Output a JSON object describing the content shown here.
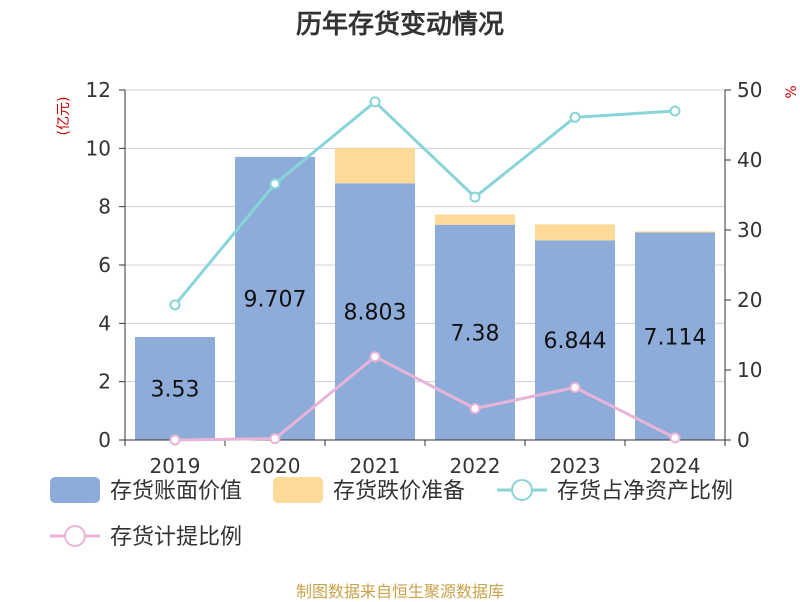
{
  "title": "历年存货变动情况",
  "source": "制图数据来自恒生聚源数据库",
  "colors": {
    "book_value": "#8eacd9",
    "provision": "#ffd998",
    "net_asset_ratio": "#88d4d8",
    "provision_ratio": "#e8b4d8",
    "unit": "#cc0000",
    "grid": "#d0d0d0",
    "axis": "#333333"
  },
  "chart_data": {
    "type": "bar",
    "categories": [
      "2019",
      "2020",
      "2021",
      "2022",
      "2023",
      "2024"
    ],
    "left_axis": {
      "unit_label": "(亿元)",
      "ylim": [
        0,
        12
      ],
      "ticks": [
        0,
        2,
        4,
        6,
        8,
        10,
        12
      ]
    },
    "right_axis": {
      "unit_label": "%",
      "ylim": [
        0,
        50
      ],
      "ticks": [
        0,
        10,
        20,
        30,
        40,
        50
      ]
    },
    "series": [
      {
        "name": "存货账面价值",
        "kind": "bar",
        "axis": "left",
        "values": [
          3.53,
          9.707,
          8.803,
          7.38,
          6.844,
          7.114
        ],
        "labels": [
          "3.53",
          "9.707",
          "8.803",
          "7.38",
          "6.844",
          "7.114"
        ]
      },
      {
        "name": "存货跌价准备",
        "kind": "bar-stacked",
        "axis": "left",
        "values": [
          0,
          0,
          1.2,
          0.35,
          0.55,
          0.04
        ]
      },
      {
        "name": "存货占净资产比例",
        "kind": "line",
        "axis": "right",
        "values": [
          19.3,
          36.6,
          48.3,
          34.7,
          46.1,
          47.0
        ]
      },
      {
        "name": "存货计提比例",
        "kind": "line",
        "axis": "right",
        "values": [
          0,
          0.2,
          11.9,
          4.5,
          7.5,
          0.3
        ]
      }
    ]
  }
}
